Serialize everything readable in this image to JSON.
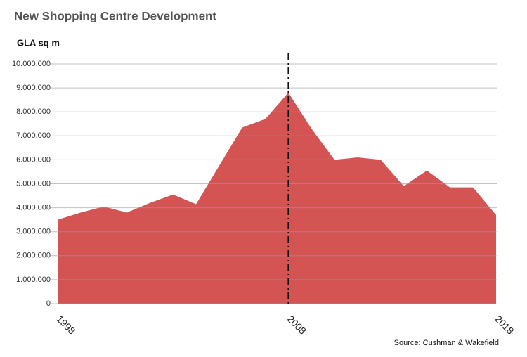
{
  "chart_data": {
    "type": "area",
    "title": "New Shopping Centre Development",
    "y_label": "GLA sq m",
    "source": "Source: Cushman & Wakefield",
    "categories": [
      "1998",
      null,
      null,
      null,
      null,
      null,
      null,
      null,
      null,
      null,
      "2008",
      null,
      null,
      null,
      null,
      null,
      null,
      null,
      null,
      "2018"
    ],
    "values": [
      3500000,
      3800000,
      4050000,
      3800000,
      4200000,
      4550000,
      4150000,
      5750000,
      7350000,
      7700000,
      8800000,
      7300000,
      6000000,
      6100000,
      6000000,
      4900000,
      5550000,
      4850000,
      4850000,
      3700000
    ],
    "color": "#d45454",
    "ylim": [
      0,
      10000000
    ],
    "yticks": [
      0,
      {
        "value": 1000000,
        "label": "1.000.000"
      },
      {
        "value": 2000000,
        "label": "2.000.000"
      },
      {
        "value": 3000000,
        "label": "3.000.000"
      },
      {
        "value": 4000000,
        "label": "4.000.000"
      },
      {
        "value": 5000000,
        "label": "5.000.000"
      },
      {
        "value": 6000000,
        "label": "6.000.000"
      },
      {
        "value": 7000000,
        "label": "7.000.000"
      },
      {
        "value": 8000000,
        "label": "8.000.000"
      },
      {
        "value": 9000000,
        "label": "9.000.000"
      },
      {
        "value": 10000000,
        "label": "10.000.000"
      }
    ],
    "grid": true
  }
}
